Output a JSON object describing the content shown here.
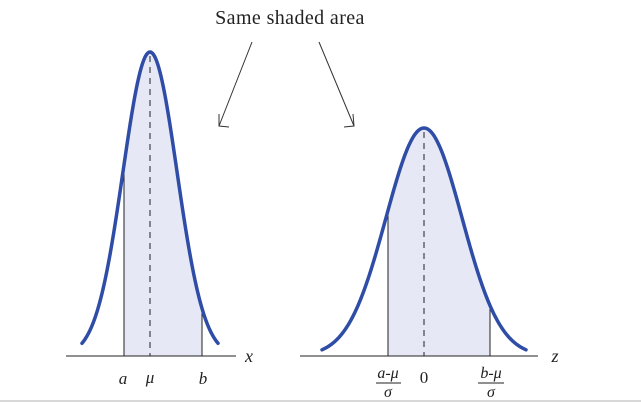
{
  "caption": "Same shaded area",
  "left_panel": {
    "axis_label": "x",
    "ticks": {
      "lower": "a",
      "mean": "μ",
      "upper": "b"
    }
  },
  "right_panel": {
    "axis_label": "z",
    "ticks": {
      "lower_num": "a-μ",
      "lower_den": "σ",
      "center": "0",
      "upper_num": "b-μ",
      "upper_den": "σ"
    }
  },
  "colors": {
    "curve": "#2f4da6",
    "shade": "#e6e8f5",
    "axis": "#222222"
  }
}
